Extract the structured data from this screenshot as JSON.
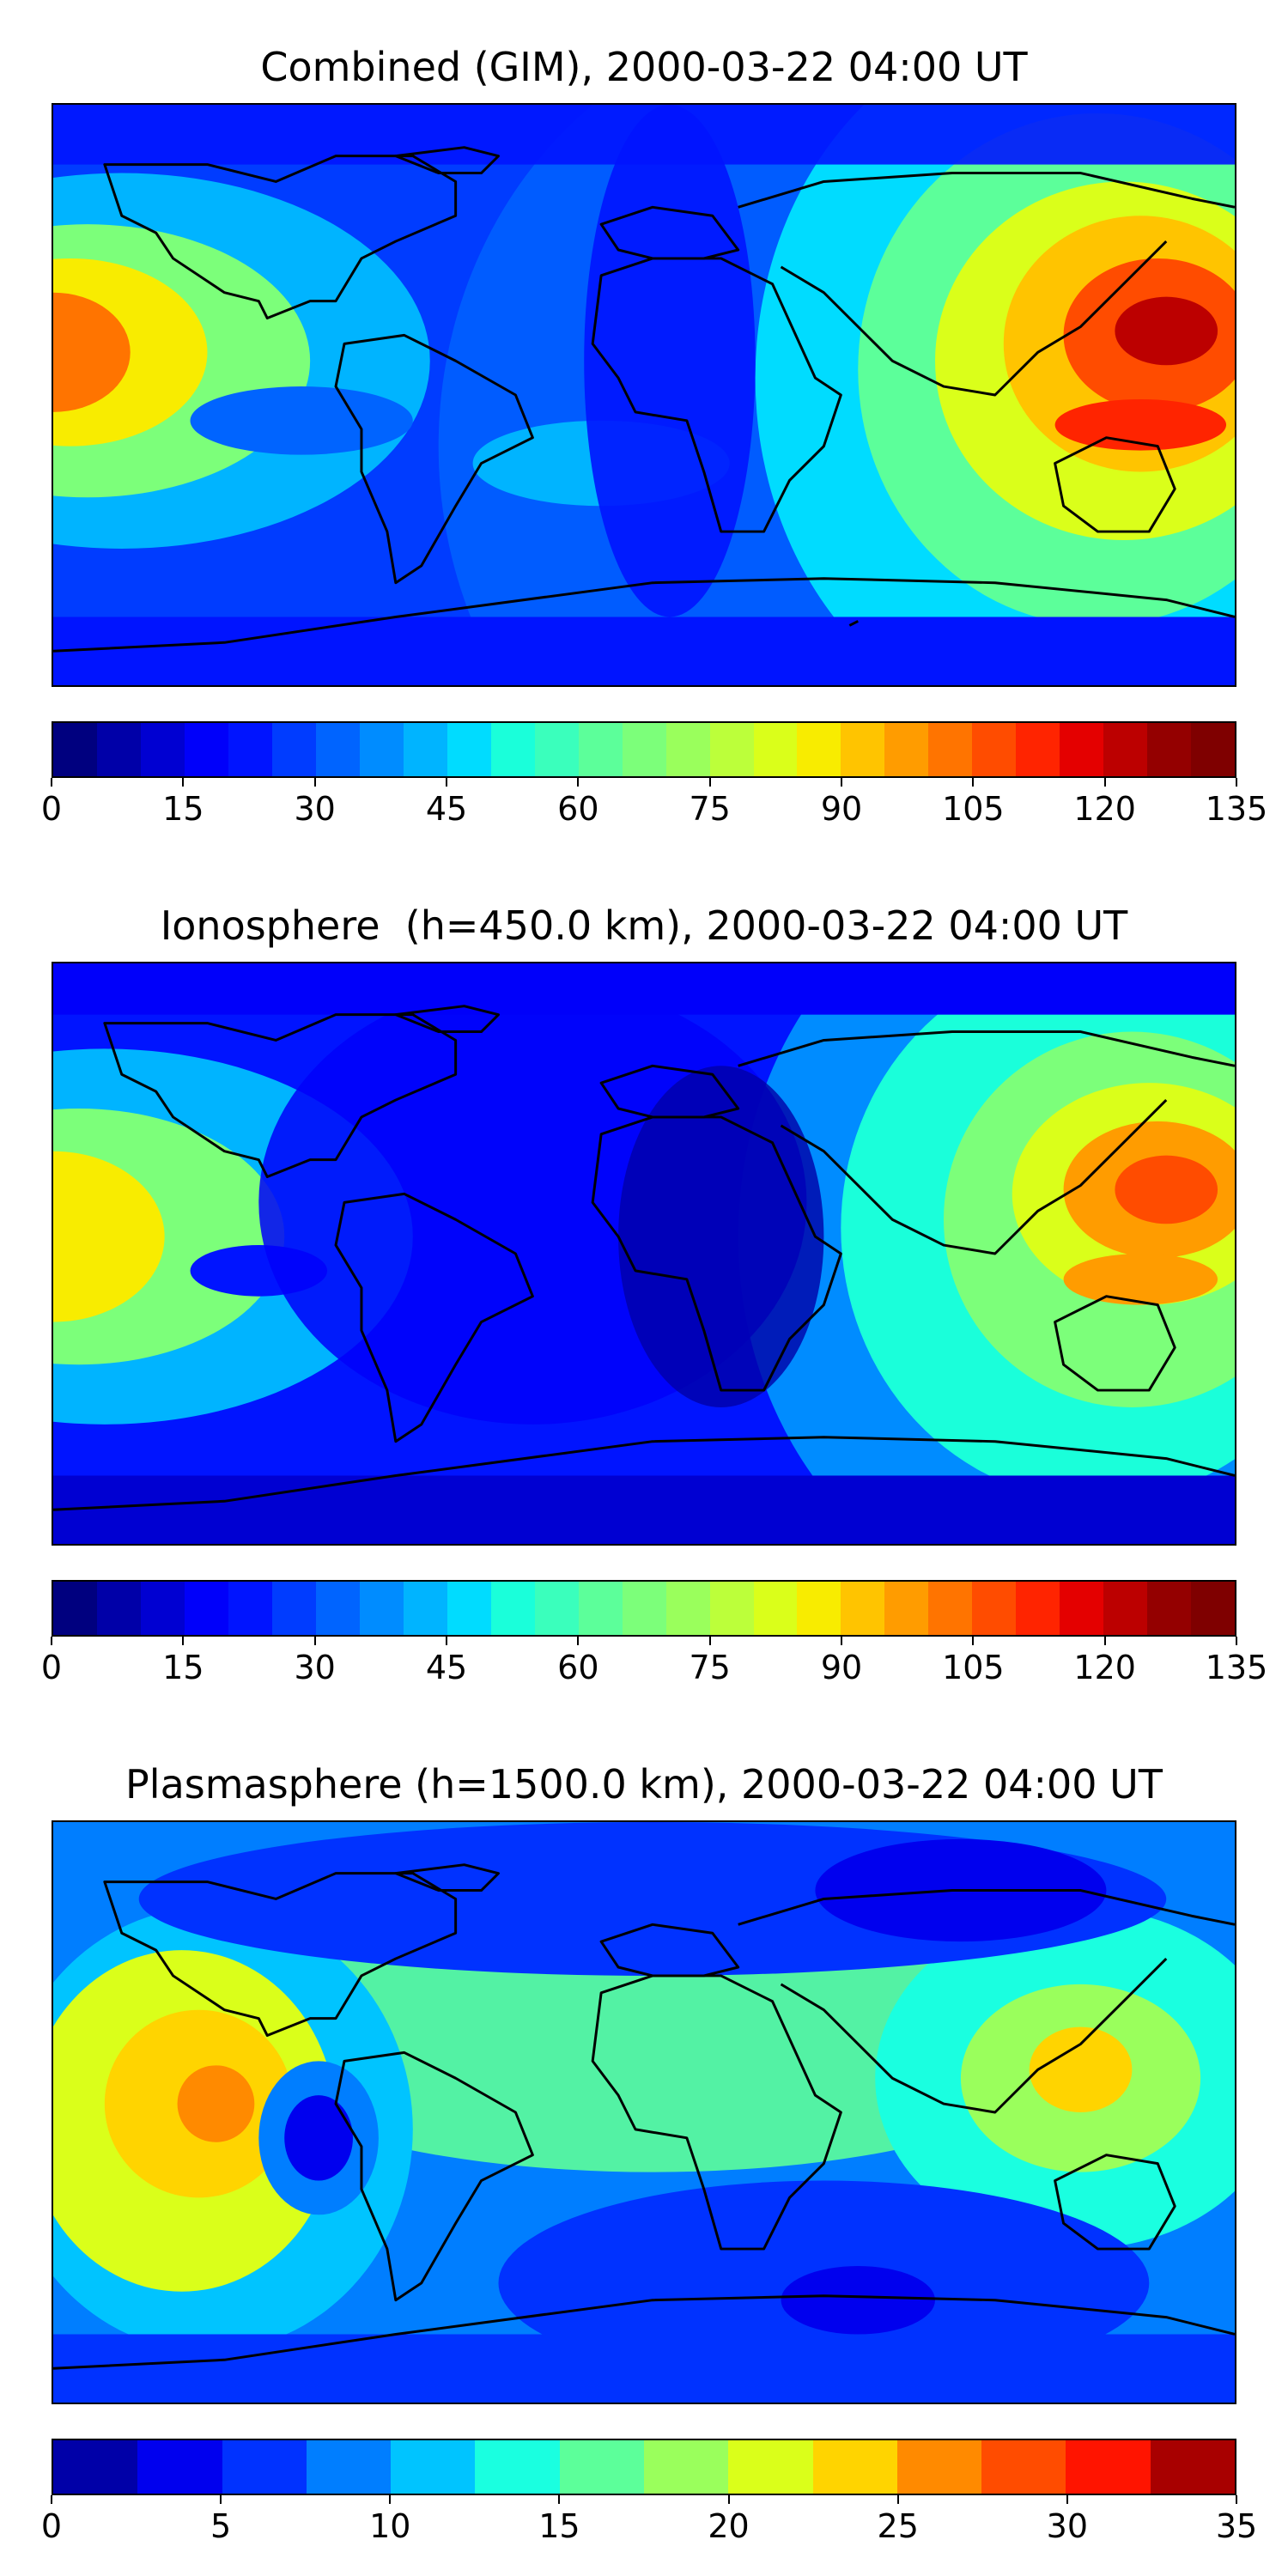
{
  "chart_data": [
    {
      "type": "heatmap",
      "title": "Combined (GIM), 2000-03-22 04:00 UT",
      "colorbar": {
        "min": 0,
        "max": 135,
        "step": 5,
        "ticks": [
          0,
          15,
          30,
          45,
          60,
          75,
          90,
          105,
          120,
          135
        ],
        "colors": [
          "#00007f",
          "#0000a8",
          "#0000d2",
          "#0000fa",
          "#0014ff",
          "#003cff",
          "#0064ff",
          "#008cff",
          "#00b4ff",
          "#00dcff",
          "#1affda",
          "#3affbc",
          "#5cff9a",
          "#7cff7a",
          "#9aff5c",
          "#bcff3a",
          "#daff1a",
          "#f8ec00",
          "#ffc400",
          "#ff9c00",
          "#ff7400",
          "#ff4c00",
          "#ff2400",
          "#e40000",
          "#bc0000",
          "#940000",
          "#7f0000"
        ]
      },
      "map": "global, 180W–180E, 90S–90N, coastlines"
    },
    {
      "type": "heatmap",
      "title": "Ionosphere  (h=450.0 km), 2000-03-22 04:00 UT",
      "colorbar": {
        "min": 0,
        "max": 135,
        "step": 5,
        "ticks": [
          0,
          15,
          30,
          45,
          60,
          75,
          90,
          105,
          120,
          135
        ],
        "colors": [
          "#00007f",
          "#0000a8",
          "#0000d2",
          "#0000fa",
          "#0014ff",
          "#003cff",
          "#0064ff",
          "#008cff",
          "#00b4ff",
          "#00dcff",
          "#1affda",
          "#3affbc",
          "#5cff9a",
          "#7cff7a",
          "#9aff5c",
          "#bcff3a",
          "#daff1a",
          "#f8ec00",
          "#ffc400",
          "#ff9c00",
          "#ff7400",
          "#ff4c00",
          "#ff2400",
          "#e40000",
          "#bc0000",
          "#940000",
          "#7f0000"
        ]
      },
      "map": "global, 180W–180E, 90S–90N, coastlines"
    },
    {
      "type": "heatmap",
      "title": "Plasmasphere (h=1500.0 km), 2000-03-22 04:00 UT",
      "colorbar": {
        "min": 0,
        "max": 35,
        "step": 2.5,
        "ticks": [
          0,
          5,
          10,
          15,
          20,
          25,
          30,
          35
        ],
        "colors": [
          "#0000a8",
          "#0000ee",
          "#0032ff",
          "#007eff",
          "#00c4ff",
          "#1affe0",
          "#5cff9a",
          "#9aff5c",
          "#daff1a",
          "#ffd400",
          "#ff8a00",
          "#ff4c00",
          "#ff1400",
          "#a80000"
        ]
      },
      "map": "global, 180W–180E, 90S–90N, coastlines"
    }
  ]
}
